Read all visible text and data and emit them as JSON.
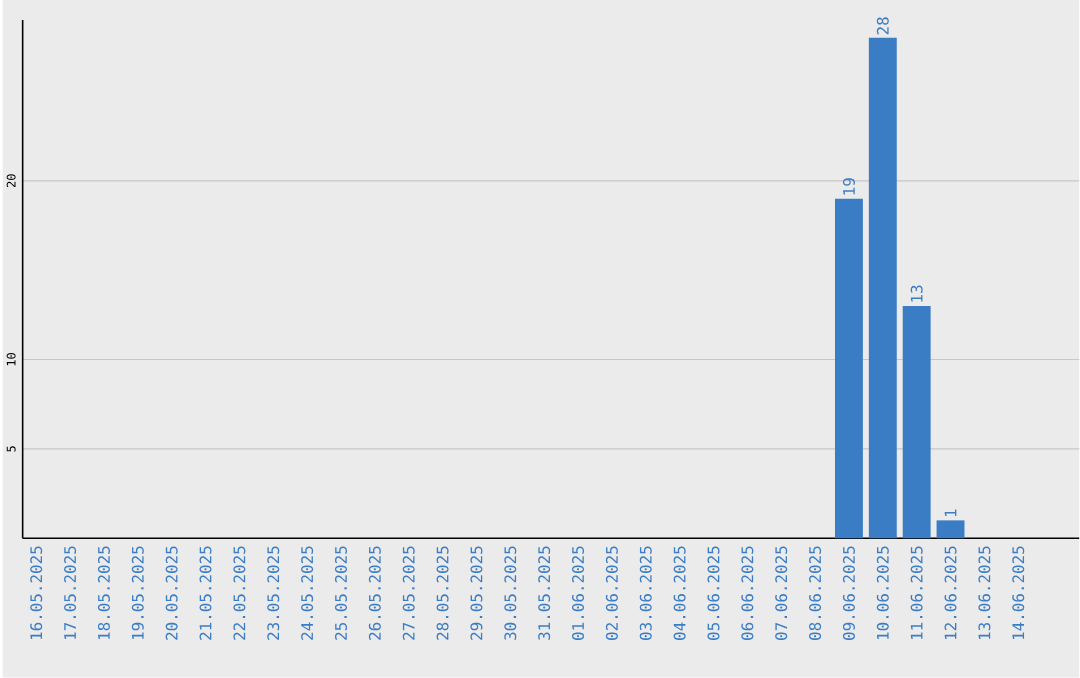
{
  "chart_data": {
    "type": "bar",
    "categories": [
      "16.05.2025",
      "17.05.2025",
      "18.05.2025",
      "19.05.2025",
      "20.05.2025",
      "21.05.2025",
      "22.05.2025",
      "23.05.2025",
      "24.05.2025",
      "25.05.2025",
      "26.05.2025",
      "27.05.2025",
      "28.05.2025",
      "29.05.2025",
      "30.05.2025",
      "31.05.2025",
      "01.06.2025",
      "02.06.2025",
      "03.06.2025",
      "04.06.2025",
      "05.06.2025",
      "06.06.2025",
      "07.06.2025",
      "08.06.2025",
      "09.06.2025",
      "10.06.2025",
      "11.06.2025",
      "12.06.2025",
      "13.06.2025",
      "14.06.2025"
    ],
    "values": [
      0,
      0,
      0,
      0,
      0,
      0,
      0,
      0,
      0,
      0,
      0,
      0,
      0,
      0,
      0,
      0,
      0,
      0,
      0,
      0,
      0,
      0,
      0,
      0,
      19,
      28,
      13,
      1,
      0,
      0
    ],
    "value_labels": [
      null,
      null,
      null,
      null,
      null,
      null,
      null,
      null,
      null,
      null,
      null,
      null,
      null,
      null,
      null,
      null,
      null,
      null,
      null,
      null,
      null,
      null,
      null,
      null,
      "19",
      "28",
      "13",
      "1",
      null,
      null
    ],
    "color": "#3b7dc4",
    "ylim": [
      0,
      29
    ],
    "yticks": [
      5,
      10,
      20
    ],
    "grid": "y"
  }
}
